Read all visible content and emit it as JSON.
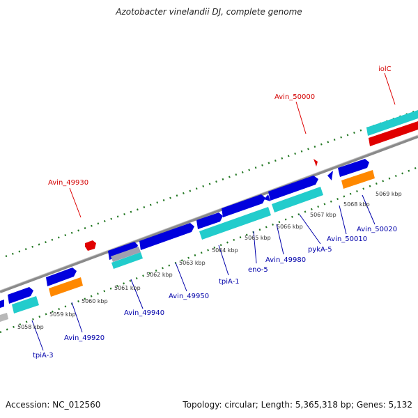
{
  "header": {
    "title": "Azotobacter vinelandii DJ, complete genome"
  },
  "footer": {
    "accession": "Accession: NC_012560",
    "summary": "Topology: circular; Length: 5,365,318 bp; Genes: 5,132"
  },
  "colors": {
    "backbone": "#888888",
    "forward_gene": "#0000dd",
    "cds_cyan": "#22cccc",
    "rna_orange": "#ff8800",
    "red_feature": "#ee0000",
    "tick_green": "#227722",
    "label_red": "#d40000",
    "label_blue": "#0000aa"
  },
  "genes": {
    "top": [
      "Avin_49930",
      "Avin_50000",
      "iolC"
    ],
    "bottom": [
      "tpiA-3",
      "Avin_49920",
      "Avin_49940",
      "Avin_49950",
      "tpiA-1",
      "eno-5",
      "Avin_49980",
      "pykA-5",
      "Avin_50010",
      "Avin_50020"
    ]
  },
  "kbp_ticks": [
    "5058 kbp",
    "5059 kbp",
    "5060 kbp",
    "5061 kbp",
    "5062 kbp",
    "5063 kbp",
    "5064 kbp",
    "5065 kbp",
    "5066 kbp",
    "5067 kbp",
    "5068 kbp",
    "5069 kbp"
  ]
}
